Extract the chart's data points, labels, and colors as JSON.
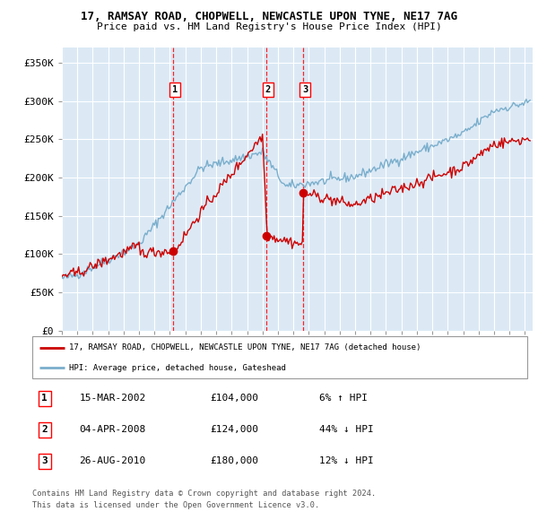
{
  "title1": "17, RAMSAY ROAD, CHOPWELL, NEWCASTLE UPON TYNE, NE17 7AG",
  "title2": "Price paid vs. HM Land Registry's House Price Index (HPI)",
  "red_label": "17, RAMSAY ROAD, CHOPWELL, NEWCASTLE UPON TYNE, NE17 7AG (detached house)",
  "blue_label": "HPI: Average price, detached house, Gateshead",
  "transactions": [
    {
      "num": 1,
      "date": "15-MAR-2002",
      "price": 104000,
      "pct": "6%",
      "dir": "↑",
      "x_year": 2002.21
    },
    {
      "num": 2,
      "date": "04-APR-2008",
      "price": 124000,
      "pct": "44%",
      "dir": "↓",
      "x_year": 2008.26
    },
    {
      "num": 3,
      "date": "26-AUG-2010",
      "price": 180000,
      "pct": "12%",
      "dir": "↓",
      "x_year": 2010.65
    }
  ],
  "ylabel_ticks": [
    "£0",
    "£50K",
    "£100K",
    "£150K",
    "£200K",
    "£250K",
    "£300K",
    "£350K"
  ],
  "ytick_vals": [
    0,
    50000,
    100000,
    150000,
    200000,
    250000,
    300000,
    350000
  ],
  "ylim": [
    0,
    370000
  ],
  "xlim_start": 1995.0,
  "xlim_end": 2025.5,
  "bg_color": "#dce9f5",
  "grid_color": "#ffffff",
  "red_color": "#cc0000",
  "blue_color": "#7aaecc",
  "footnote1": "Contains HM Land Registry data © Crown copyright and database right 2024.",
  "footnote2": "This data is licensed under the Open Government Licence v3.0.",
  "sale_prices": [
    104000,
    124000,
    180000
  ]
}
